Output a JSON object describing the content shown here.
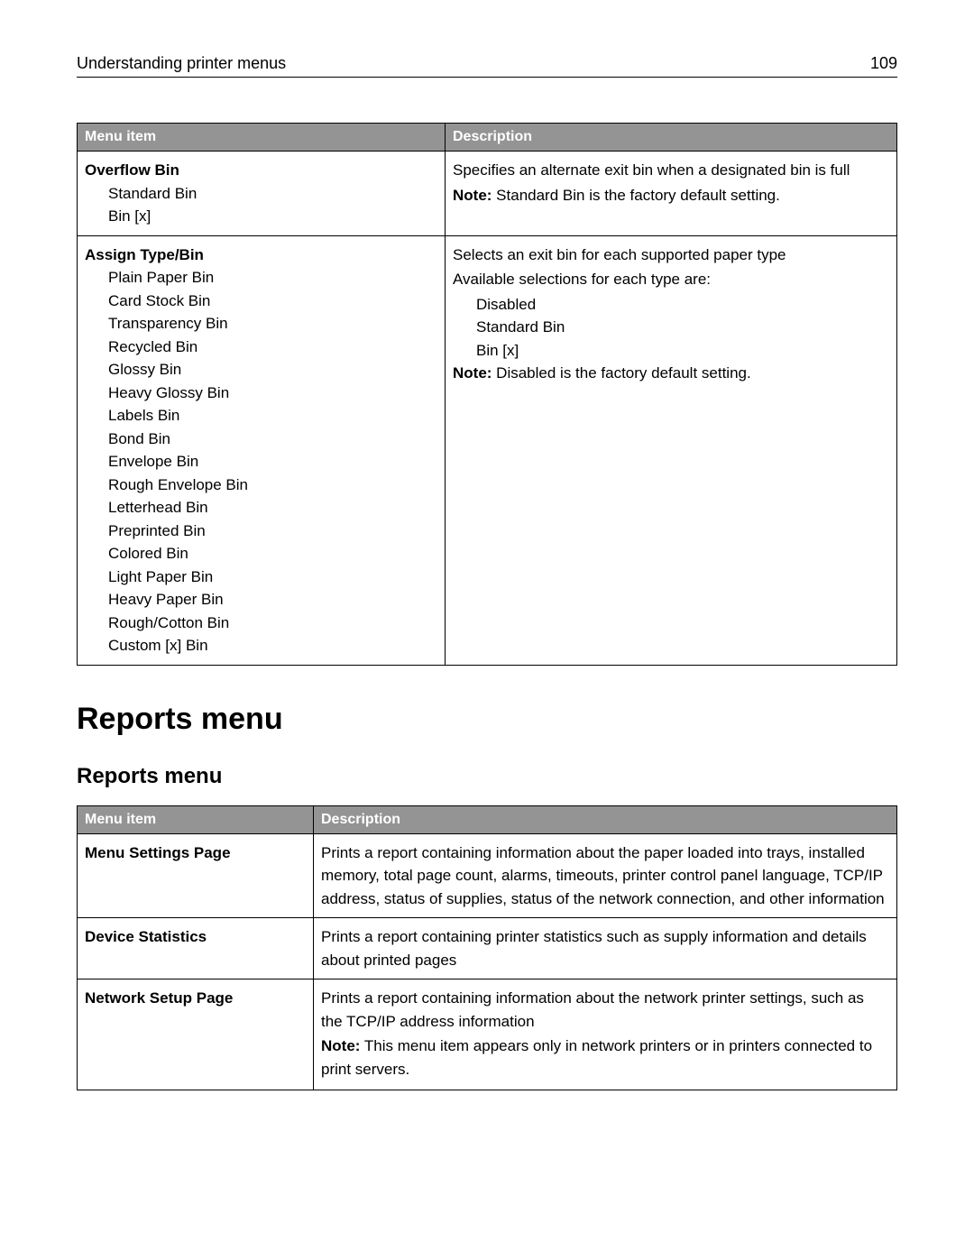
{
  "header": {
    "title": "Understanding printer menus",
    "page_number": "109"
  },
  "table1": {
    "headers": [
      "Menu item",
      "Description"
    ],
    "rows": [
      {
        "item_title": "Overflow Bin",
        "subitems": [
          "Standard Bin",
          "Bin [x]"
        ],
        "desc_lines": [
          "Specifies an alternate exit bin when a designated bin is full"
        ],
        "note_label": "Note:",
        "note_text": " Standard Bin is the factory default setting."
      },
      {
        "item_title": "Assign Type/Bin",
        "subitems": [
          "Plain Paper Bin",
          "Card Stock Bin",
          "Transparency Bin",
          "Recycled Bin",
          "Glossy Bin",
          "Heavy Glossy Bin",
          "Labels Bin",
          "Bond Bin",
          "Envelope Bin",
          "Rough Envelope Bin",
          "Letterhead Bin",
          "Preprinted Bin",
          "Colored Bin",
          "Light Paper Bin",
          "Heavy Paper Bin",
          "Rough/Cotton Bin",
          "Custom [x] Bin"
        ],
        "desc_lines": [
          "Selects an exit bin for each supported paper type",
          "Available selections for each type are:"
        ],
        "desc_subitems": [
          "Disabled",
          "Standard Bin",
          "Bin [x]"
        ],
        "note_label": "Note:",
        "note_text": "  Disabled is the factory default setting."
      }
    ]
  },
  "sections": {
    "h1": "Reports menu",
    "h2": "Reports menu"
  },
  "table2": {
    "headers": [
      "Menu item",
      "Description"
    ],
    "rows": [
      {
        "item_title": "Menu Settings Page",
        "desc_text": "Prints a report containing information about the paper loaded into trays, installed memory, total page count, alarms, timeouts, printer control panel language, TCP/IP address, status of supplies, status of the network connection, and other information"
      },
      {
        "item_title": "Device Statistics",
        "desc_text": "Prints a report containing printer statistics such as supply information and details about printed pages"
      },
      {
        "item_title": "Network Setup Page",
        "desc_text": "Prints a report containing information about the network printer settings, such as the TCP/IP address information",
        "note_label": "Note:",
        "note_text": " This menu item appears only in network printers or in printers connected to print servers."
      }
    ]
  }
}
